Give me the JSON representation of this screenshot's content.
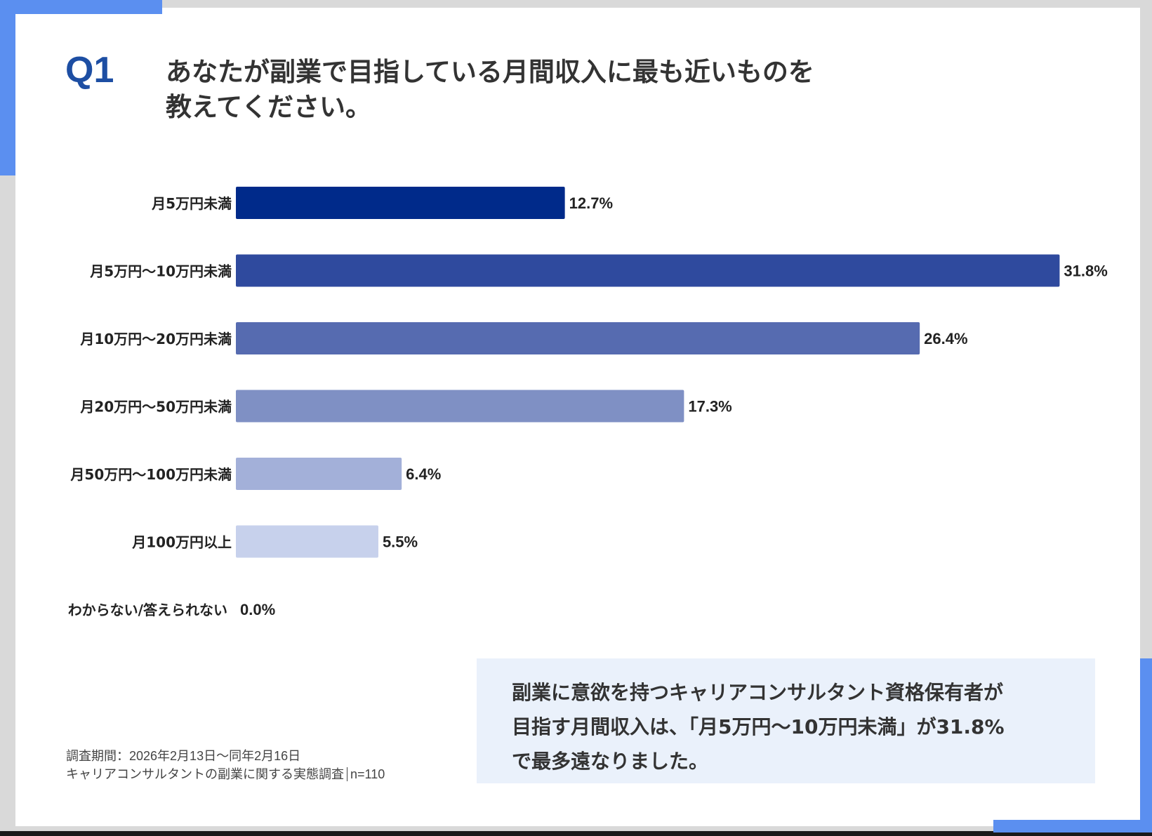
{
  "question": {
    "number": "Q1",
    "title_line1": "あなたが副業で目指している月間収入に最も近いものを",
    "title_line2": "教えてください。"
  },
  "chart_data": {
    "type": "bar",
    "orientation": "horizontal",
    "categories": [
      "月5万円未満",
      "月5万円〜10万円未満",
      "月10万円〜20万円未満",
      "月20万円〜50万円未満",
      "月50万円〜100万円未満",
      "月100万円以上",
      "わからない/答えられない"
    ],
    "values": [
      12.7,
      31.8,
      26.4,
      17.3,
      6.4,
      5.5,
      0.0
    ],
    "data_labels": [
      "12.7%",
      "31.8%",
      "26.4%",
      "17.3%",
      "6.4%",
      "5.5%",
      "0.0%"
    ],
    "colors": [
      "#002a8a",
      "#2f4a9e",
      "#566bb0",
      "#7f90c4",
      "#a3b0d9",
      "#c7d1ec",
      "#c7d1ec"
    ],
    "unit": "%",
    "grid": false,
    "axes_visible": false
  },
  "callout": {
    "line1": "副業に意欲を持つキャリアコンサルタント資格保有者が",
    "line2": "目指す月間収入は、「月5万円〜10万円未満」が31.8%",
    "line3": "で最多遠なりました。"
  },
  "footnote": {
    "period": "調査期間：2026年2月13日〜同年2月16日",
    "survey": "キャリアコンサルタントの副業に関する実態調査",
    "n": "n=110"
  },
  "colors": {
    "accent": "#5b8ff0",
    "q_number": "#1d4ea3",
    "callout_bg": "#eaf1fb"
  }
}
